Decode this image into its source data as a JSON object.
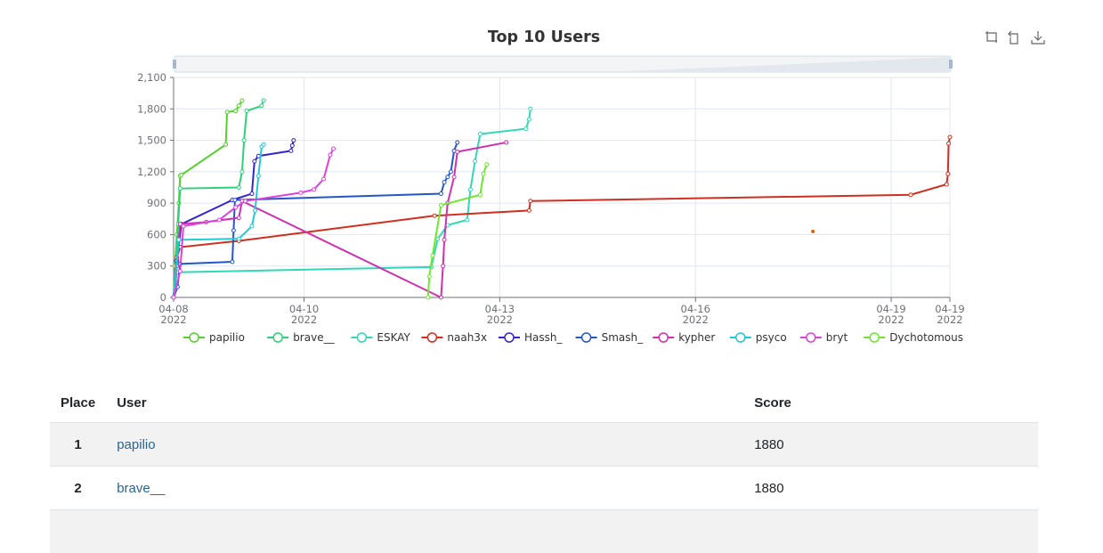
{
  "chart_data": {
    "type": "line",
    "title": "Top 10 Users",
    "xlabel": "",
    "ylabel": "",
    "x_unit": "days",
    "xlim": [
      "04-08 00:00",
      "04-19 07:00"
    ],
    "x_ticks": [
      {
        "value": 0,
        "line1": "04-08",
        "line2": "2022"
      },
      {
        "value": 2,
        "line1": "04-10",
        "line2": "2022"
      },
      {
        "value": 5,
        "line1": "04-13",
        "line2": "2022"
      },
      {
        "value": 8,
        "line1": "04-16",
        "line2": "2022"
      },
      {
        "value": 11,
        "line1": "04-19",
        "line2": "2022"
      },
      {
        "value": 11.9,
        "line1": "04-19",
        "line2": "2022"
      }
    ],
    "ylim": [
      0,
      2100
    ],
    "y_ticks": [
      "0",
      "300",
      "600",
      "900",
      "1,200",
      "1,500",
      "1,800",
      "2,100"
    ],
    "y_tick_values": [
      0,
      300,
      600,
      900,
      1200,
      1500,
      1800,
      2100
    ],
    "grid": true,
    "legend_position": "bottom",
    "series": [
      {
        "name": "papilio",
        "color": "#56d02f",
        "points": [
          [
            0,
            0
          ],
          [
            0.02,
            300
          ],
          [
            0.05,
            600
          ],
          [
            0.08,
            900
          ],
          [
            0.1,
            1160
          ],
          [
            0.12,
            1170
          ],
          [
            0.8,
            1460
          ],
          [
            0.82,
            1770
          ],
          [
            0.95,
            1780
          ],
          [
            1.0,
            1830
          ],
          [
            1.05,
            1880
          ]
        ]
      },
      {
        "name": "brave__",
        "color": "#2fd07a",
        "points": [
          [
            0,
            0
          ],
          [
            0.04,
            350
          ],
          [
            0.07,
            700
          ],
          [
            0.1,
            1040
          ],
          [
            1.0,
            1050
          ],
          [
            1.05,
            1200
          ],
          [
            1.08,
            1500
          ],
          [
            1.12,
            1780
          ],
          [
            1.35,
            1830
          ],
          [
            1.38,
            1880
          ]
        ]
      },
      {
        "name": "ESKAY",
        "color": "#30d8b6",
        "points": [
          [
            0,
            0
          ],
          [
            0.05,
            240
          ],
          [
            3.95,
            290
          ],
          [
            4.05,
            560
          ],
          [
            4.2,
            690
          ],
          [
            4.5,
            740
          ],
          [
            4.55,
            1030
          ],
          [
            4.62,
            1300
          ],
          [
            4.7,
            1560
          ],
          [
            5.4,
            1610
          ],
          [
            5.45,
            1700
          ],
          [
            5.47,
            1800
          ]
        ]
      },
      {
        "name": "naah3x",
        "color": "#d02f1f",
        "points": [
          [
            0,
            0
          ],
          [
            0.05,
            380
          ],
          [
            0.1,
            480
          ],
          [
            1.0,
            540
          ],
          [
            4.0,
            780
          ],
          [
            5.45,
            830
          ],
          [
            5.47,
            920
          ],
          [
            11.3,
            980
          ],
          [
            11.85,
            1080
          ],
          [
            11.87,
            1180
          ],
          [
            11.88,
            1470
          ],
          [
            11.9,
            1530
          ]
        ]
      },
      {
        "name": "Hassh_",
        "color": "#3324d0",
        "points": [
          [
            0,
            0
          ],
          [
            0.05,
            350
          ],
          [
            0.12,
            700
          ],
          [
            0.9,
            930
          ],
          [
            1.2,
            990
          ],
          [
            1.24,
            1300
          ],
          [
            1.3,
            1350
          ],
          [
            1.8,
            1400
          ],
          [
            1.82,
            1450
          ],
          [
            1.84,
            1500
          ]
        ]
      },
      {
        "name": "Smash_",
        "color": "#2356c8",
        "points": [
          [
            0,
            0
          ],
          [
            0.06,
            100
          ],
          [
            0.1,
            320
          ],
          [
            0.9,
            340
          ],
          [
            0.92,
            640
          ],
          [
            0.94,
            930
          ],
          [
            4.1,
            990
          ],
          [
            4.15,
            1100
          ],
          [
            4.2,
            1150
          ],
          [
            4.25,
            1200
          ],
          [
            4.3,
            1400
          ],
          [
            4.35,
            1480
          ]
        ]
      },
      {
        "name": "kypher",
        "color": "#d030b0",
        "points": [
          [
            0,
            0
          ],
          [
            0.05,
            300
          ],
          [
            0.1,
            700
          ],
          [
            0.5,
            720
          ],
          [
            1.0,
            760
          ],
          [
            1.05,
            920
          ],
          [
            4.1,
            0
          ],
          [
            4.13,
            300
          ],
          [
            4.15,
            550
          ],
          [
            4.2,
            900
          ],
          [
            4.3,
            1150
          ],
          [
            4.35,
            1390
          ],
          [
            5.1,
            1480
          ]
        ]
      },
      {
        "name": "psyco",
        "color": "#23c8d6",
        "points": [
          [
            0,
            0
          ],
          [
            0.08,
            550
          ],
          [
            1.0,
            560
          ],
          [
            1.2,
            680
          ],
          [
            1.25,
            830
          ],
          [
            1.3,
            1160
          ],
          [
            1.35,
            1440
          ],
          [
            1.38,
            1460
          ]
        ]
      },
      {
        "name": "bryt",
        "color": "#e040e0",
        "points": [
          [
            0,
            0
          ],
          [
            0.1,
            250
          ],
          [
            0.15,
            680
          ],
          [
            0.7,
            740
          ],
          [
            0.95,
            860
          ],
          [
            1.1,
            920
          ],
          [
            1.95,
            1000
          ],
          [
            2.15,
            1030
          ],
          [
            2.3,
            1130
          ],
          [
            2.4,
            1360
          ],
          [
            2.45,
            1420
          ]
        ]
      },
      {
        "name": "Dychotomous",
        "color": "#6ee82e",
        "points": [
          [
            3.9,
            0
          ],
          [
            3.92,
            200
          ],
          [
            3.97,
            400
          ],
          [
            4.1,
            880
          ],
          [
            4.7,
            980
          ],
          [
            4.75,
            1180
          ],
          [
            4.8,
            1270
          ]
        ]
      }
    ],
    "outlier_points": [
      {
        "series": "naah3x",
        "x": 9.8,
        "y": 630,
        "color": "#e06010"
      }
    ]
  },
  "toolbox": {
    "icons": [
      "zoom-icon",
      "zoom-reset-icon",
      "save-image-icon"
    ]
  },
  "table": {
    "headers": {
      "place": "Place",
      "user": "User",
      "score": "Score"
    },
    "rows": [
      {
        "place": "1",
        "user": "papilio",
        "score": "1880"
      },
      {
        "place": "2",
        "user": "brave__",
        "score": "1880"
      },
      {
        "place": "",
        "user": "",
        "score": ""
      }
    ]
  }
}
